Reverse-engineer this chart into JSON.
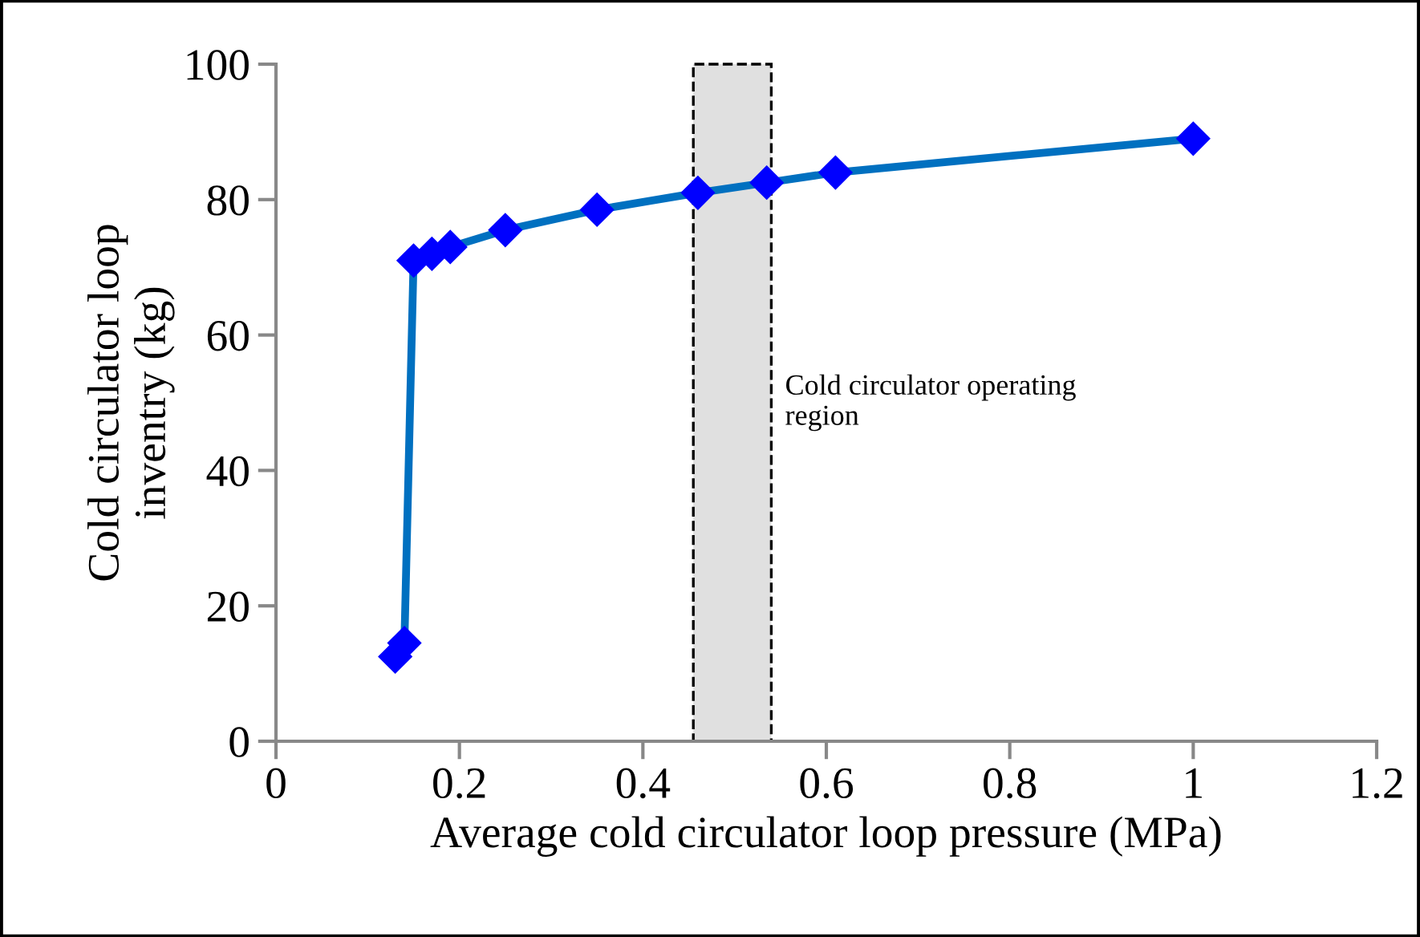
{
  "chart_data": {
    "type": "line",
    "xlabel": "Average cold circulator loop pressure (MPa)",
    "ylabel": "Cold circulator loop\ninventry (kg)",
    "x": [
      0.13,
      0.14,
      0.15,
      0.17,
      0.19,
      0.25,
      0.35,
      0.46,
      0.535,
      0.61,
      1.0
    ],
    "series": [
      {
        "color": "#0070c0",
        "colors": [
          "#0000ff",
          "#0000ff",
          "#0000ff",
          "#0000ff",
          "#0000ff",
          "#0000ff",
          "#0000ff",
          "#0000ff",
          "#0000ff",
          "#0000ff",
          "#0000ff"
        ],
        "values": [
          12.5,
          14.5,
          71,
          72,
          73,
          75.5,
          78.5,
          81,
          82.5,
          84,
          89
        ]
      }
    ],
    "marker": "diamond",
    "line_style": "solid",
    "xlim": [
      0,
      1.2
    ],
    "xticks": [
      0,
      0.2,
      0.4,
      0.6,
      0.8,
      1,
      1.2
    ],
    "ylim": [
      0,
      100
    ],
    "yticks": [
      0,
      20,
      40,
      60,
      80,
      100
    ],
    "bands": [
      {
        "axis": "x",
        "from": 0.455,
        "to": 0.54,
        "label": "Cold circulator operating\nregion",
        "color": "#e0e0e0"
      }
    ],
    "grid": false,
    "legend": false
  }
}
